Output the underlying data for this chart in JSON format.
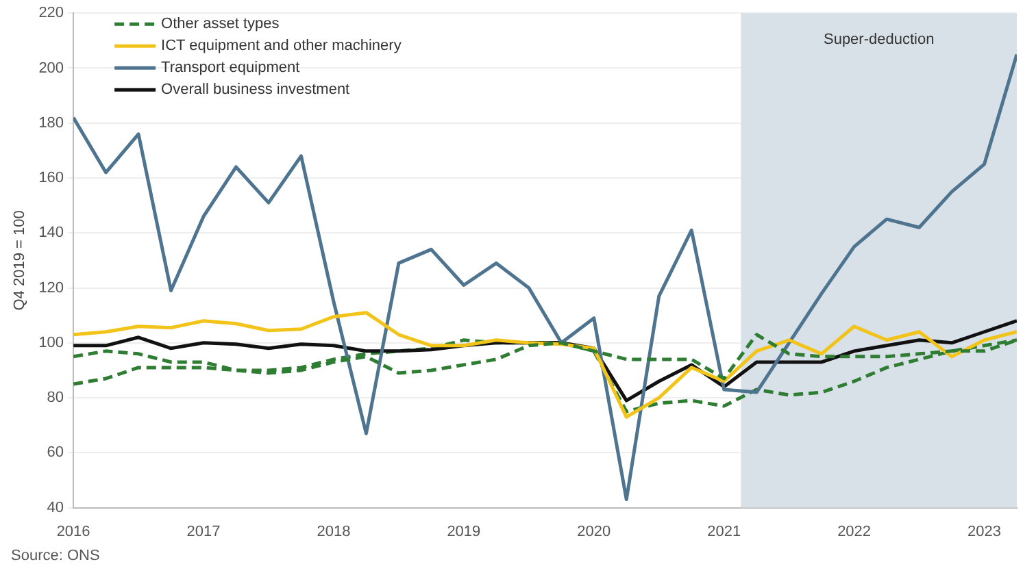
{
  "chart_data": {
    "type": "line",
    "ylabel": "Q4 2019 = 100",
    "annotations": [
      "Source: ONS"
    ],
    "x": [
      2016,
      2016.25,
      2016.5,
      2016.75,
      2017,
      2017.25,
      2017.5,
      2017.75,
      2018,
      2018.25,
      2018.5,
      2018.75,
      2019,
      2019.25,
      2019.5,
      2019.75,
      2020,
      2020.25,
      2020.5,
      2020.75,
      2021,
      2021.25,
      2021.5,
      2021.75,
      2022,
      2022.25,
      2022.5,
      2022.75,
      2023,
      2023.25
    ],
    "series": [
      {
        "name": "Other asset types",
        "color": "#2e7d32",
        "line_style": "dashed",
        "values": [
          95,
          97,
          96,
          93,
          93,
          90,
          89,
          90,
          93,
          95,
          89,
          90,
          92,
          94,
          99,
          100,
          97,
          94,
          94,
          94,
          87,
          103,
          96,
          95,
          95,
          95,
          96,
          97,
          97,
          101
        ]
      },
      {
        "name": "ICT equipment and other machinery",
        "color": "#f2c318",
        "values": [
          103,
          104,
          106,
          105.5,
          108,
          107,
          104.5,
          105,
          109.5,
          111,
          103,
          99,
          99,
          101,
          100,
          99.5,
          98,
          73,
          80,
          91,
          86,
          97,
          101,
          96,
          106,
          101,
          104,
          95,
          101,
          104
        ]
      },
      {
        "name": "Transport equipment",
        "color": "#4f7490",
        "values": [
          182,
          162,
          176,
          119,
          146,
          164,
          151,
          168,
          115,
          67,
          129,
          134,
          121,
          129,
          120,
          100,
          109,
          43,
          117,
          141,
          83,
          82,
          100,
          118,
          135,
          145,
          142,
          155,
          165,
          205
        ]
      },
      {
        "name": "Overall business investment",
        "color": "#111111",
        "values": [
          99,
          99,
          102,
          98,
          100,
          99.5,
          98,
          99.5,
          99,
          97,
          97,
          97.5,
          99,
          100,
          100,
          100,
          98,
          79,
          86,
          92,
          84,
          93,
          93,
          93,
          97,
          99,
          101,
          100,
          104,
          108
        ]
      },
      {
        "color": "#2e7d32",
        "line_style": "dashed",
        "values": [
          85,
          87,
          91,
          91,
          91,
          90,
          90,
          91,
          94,
          96,
          97,
          98,
          101,
          100,
          100,
          100,
          97,
          75,
          78,
          79,
          77,
          83,
          81,
          82,
          86,
          91,
          94,
          97,
          99,
          101
        ]
      }
    ],
    "xlim": [
      2016,
      2023.25
    ],
    "xticks": [
      2016,
      2017,
      2018,
      2019,
      2020,
      2021,
      2022,
      2023
    ],
    "ylim": [
      40,
      220
    ],
    "yticks": [
      40,
      60,
      80,
      100,
      120,
      140,
      160,
      180,
      200,
      220
    ],
    "bands": [
      {
        "axis": "x",
        "from": 2021.13,
        "to": 2023.25,
        "label": "Super-deduction",
        "color": "#d9e1e8"
      }
    ],
    "grid": "y",
    "legend": "top left",
    "marker": "none"
  }
}
